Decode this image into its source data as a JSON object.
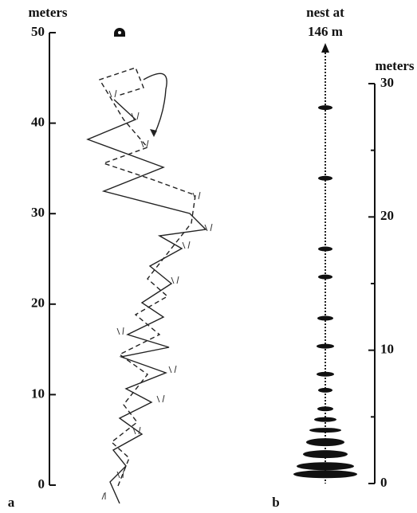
{
  "panel_a": {
    "label": "a",
    "axis_label": "meters",
    "ylim": [
      0,
      50
    ],
    "yticks": [
      0,
      10,
      20,
      30,
      40,
      50
    ]
  },
  "panel_b": {
    "label": "b",
    "axis_label": "meters",
    "title_lines": [
      "nest at",
      "146 m"
    ],
    "ylim": [
      0,
      30
    ],
    "yticks": [
      0,
      10,
      20,
      30
    ],
    "minor_ticks": [
      5,
      15,
      25
    ],
    "marks": [
      28.2,
      22.9,
      17.6,
      15.5,
      12.4,
      10.3,
      8.2,
      7.0,
      5.6,
      4.8,
      4.0,
      3.1,
      2.2,
      1.3,
      0.7
    ]
  }
}
